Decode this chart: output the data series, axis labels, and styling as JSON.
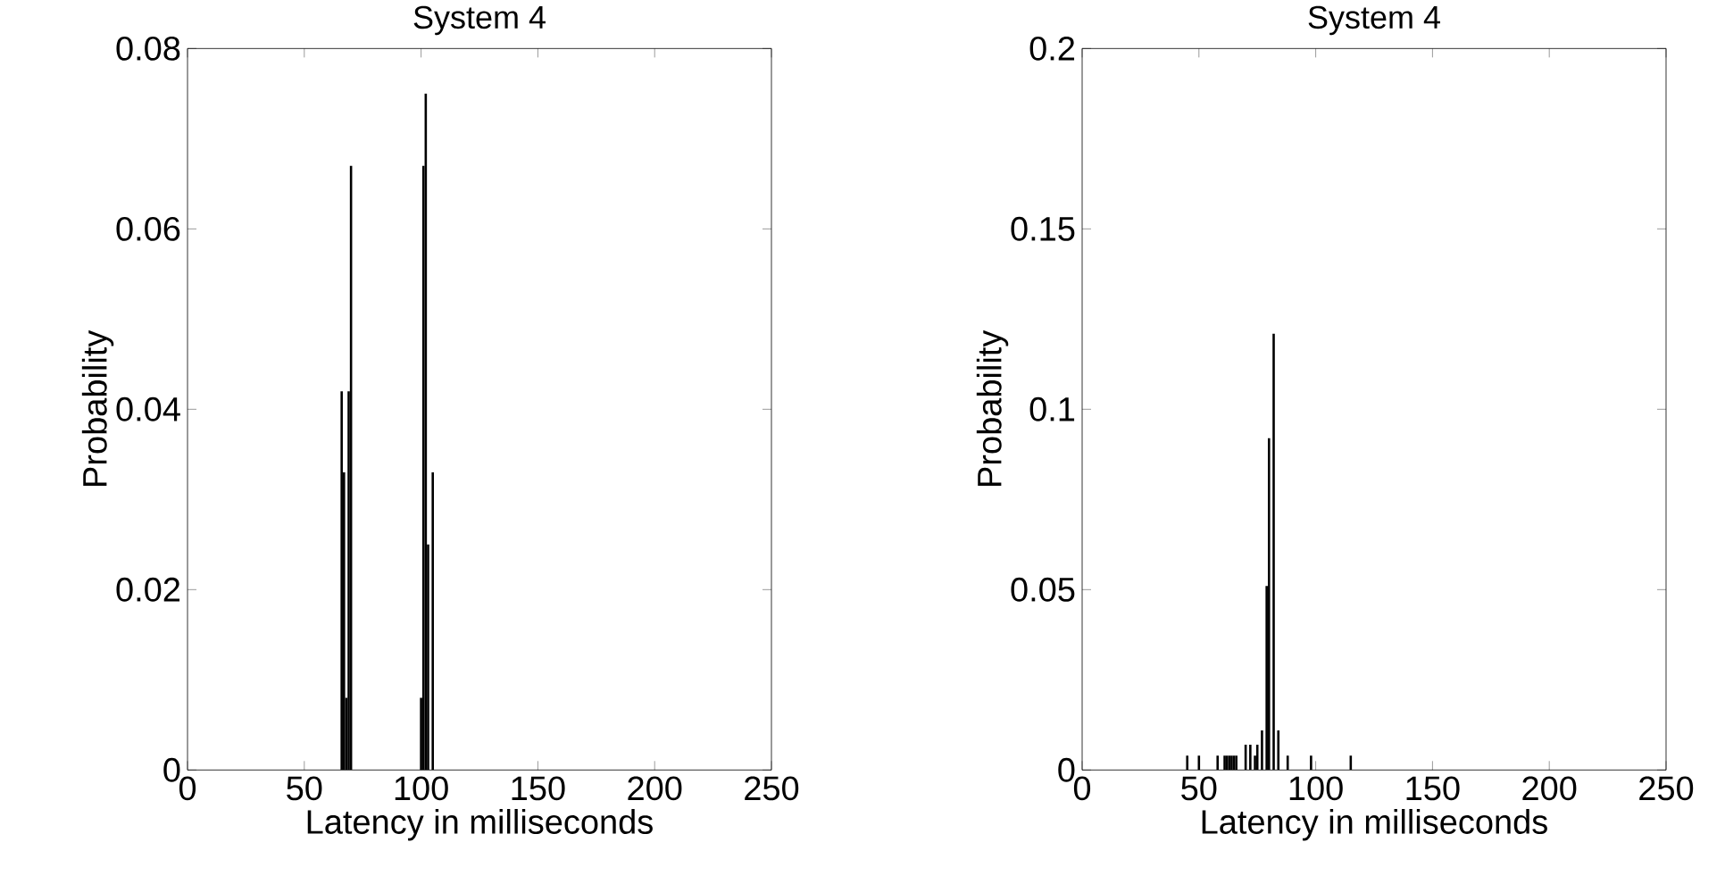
{
  "chart_data": [
    {
      "type": "bar",
      "title": "System 4",
      "xlabel": "Latency in milliseconds",
      "ylabel": "Probability",
      "color": "#000000",
      "x": [
        66,
        67,
        68,
        69,
        70,
        100,
        101,
        102,
        103,
        105
      ],
      "values": [
        0.042,
        0.033,
        0.008,
        0.042,
        0.067,
        0.008,
        0.067,
        0.075,
        0.025,
        0.033
      ],
      "xlim": [
        0,
        250
      ],
      "ylim": [
        0,
        0.08
      ],
      "xticks": [
        0,
        50,
        100,
        150,
        200,
        250
      ],
      "yticks": [
        0,
        0.02,
        0.04,
        0.06,
        0.08
      ],
      "grid": false
    },
    {
      "type": "bar",
      "title": "System 4",
      "xlabel": "Latency in milliseconds",
      "ylabel": "Probability",
      "color": "#000000",
      "x": [
        45,
        50,
        58,
        61,
        62,
        63,
        64,
        65,
        66,
        70,
        72,
        74,
        75,
        77,
        79,
        80,
        82,
        84,
        88,
        98,
        115
      ],
      "values": [
        0.004,
        0.004,
        0.004,
        0.004,
        0.004,
        0.004,
        0.004,
        0.004,
        0.004,
        0.007,
        0.007,
        0.004,
        0.007,
        0.011,
        0.051,
        0.092,
        0.121,
        0.011,
        0.004,
        0.004,
        0.004
      ],
      "xlim": [
        0,
        250
      ],
      "ylim": [
        0,
        0.2
      ],
      "xticks": [
        0,
        50,
        100,
        150,
        200,
        250
      ],
      "yticks": [
        0,
        0.05,
        0.1,
        0.15,
        0.2
      ],
      "grid": false
    }
  ]
}
